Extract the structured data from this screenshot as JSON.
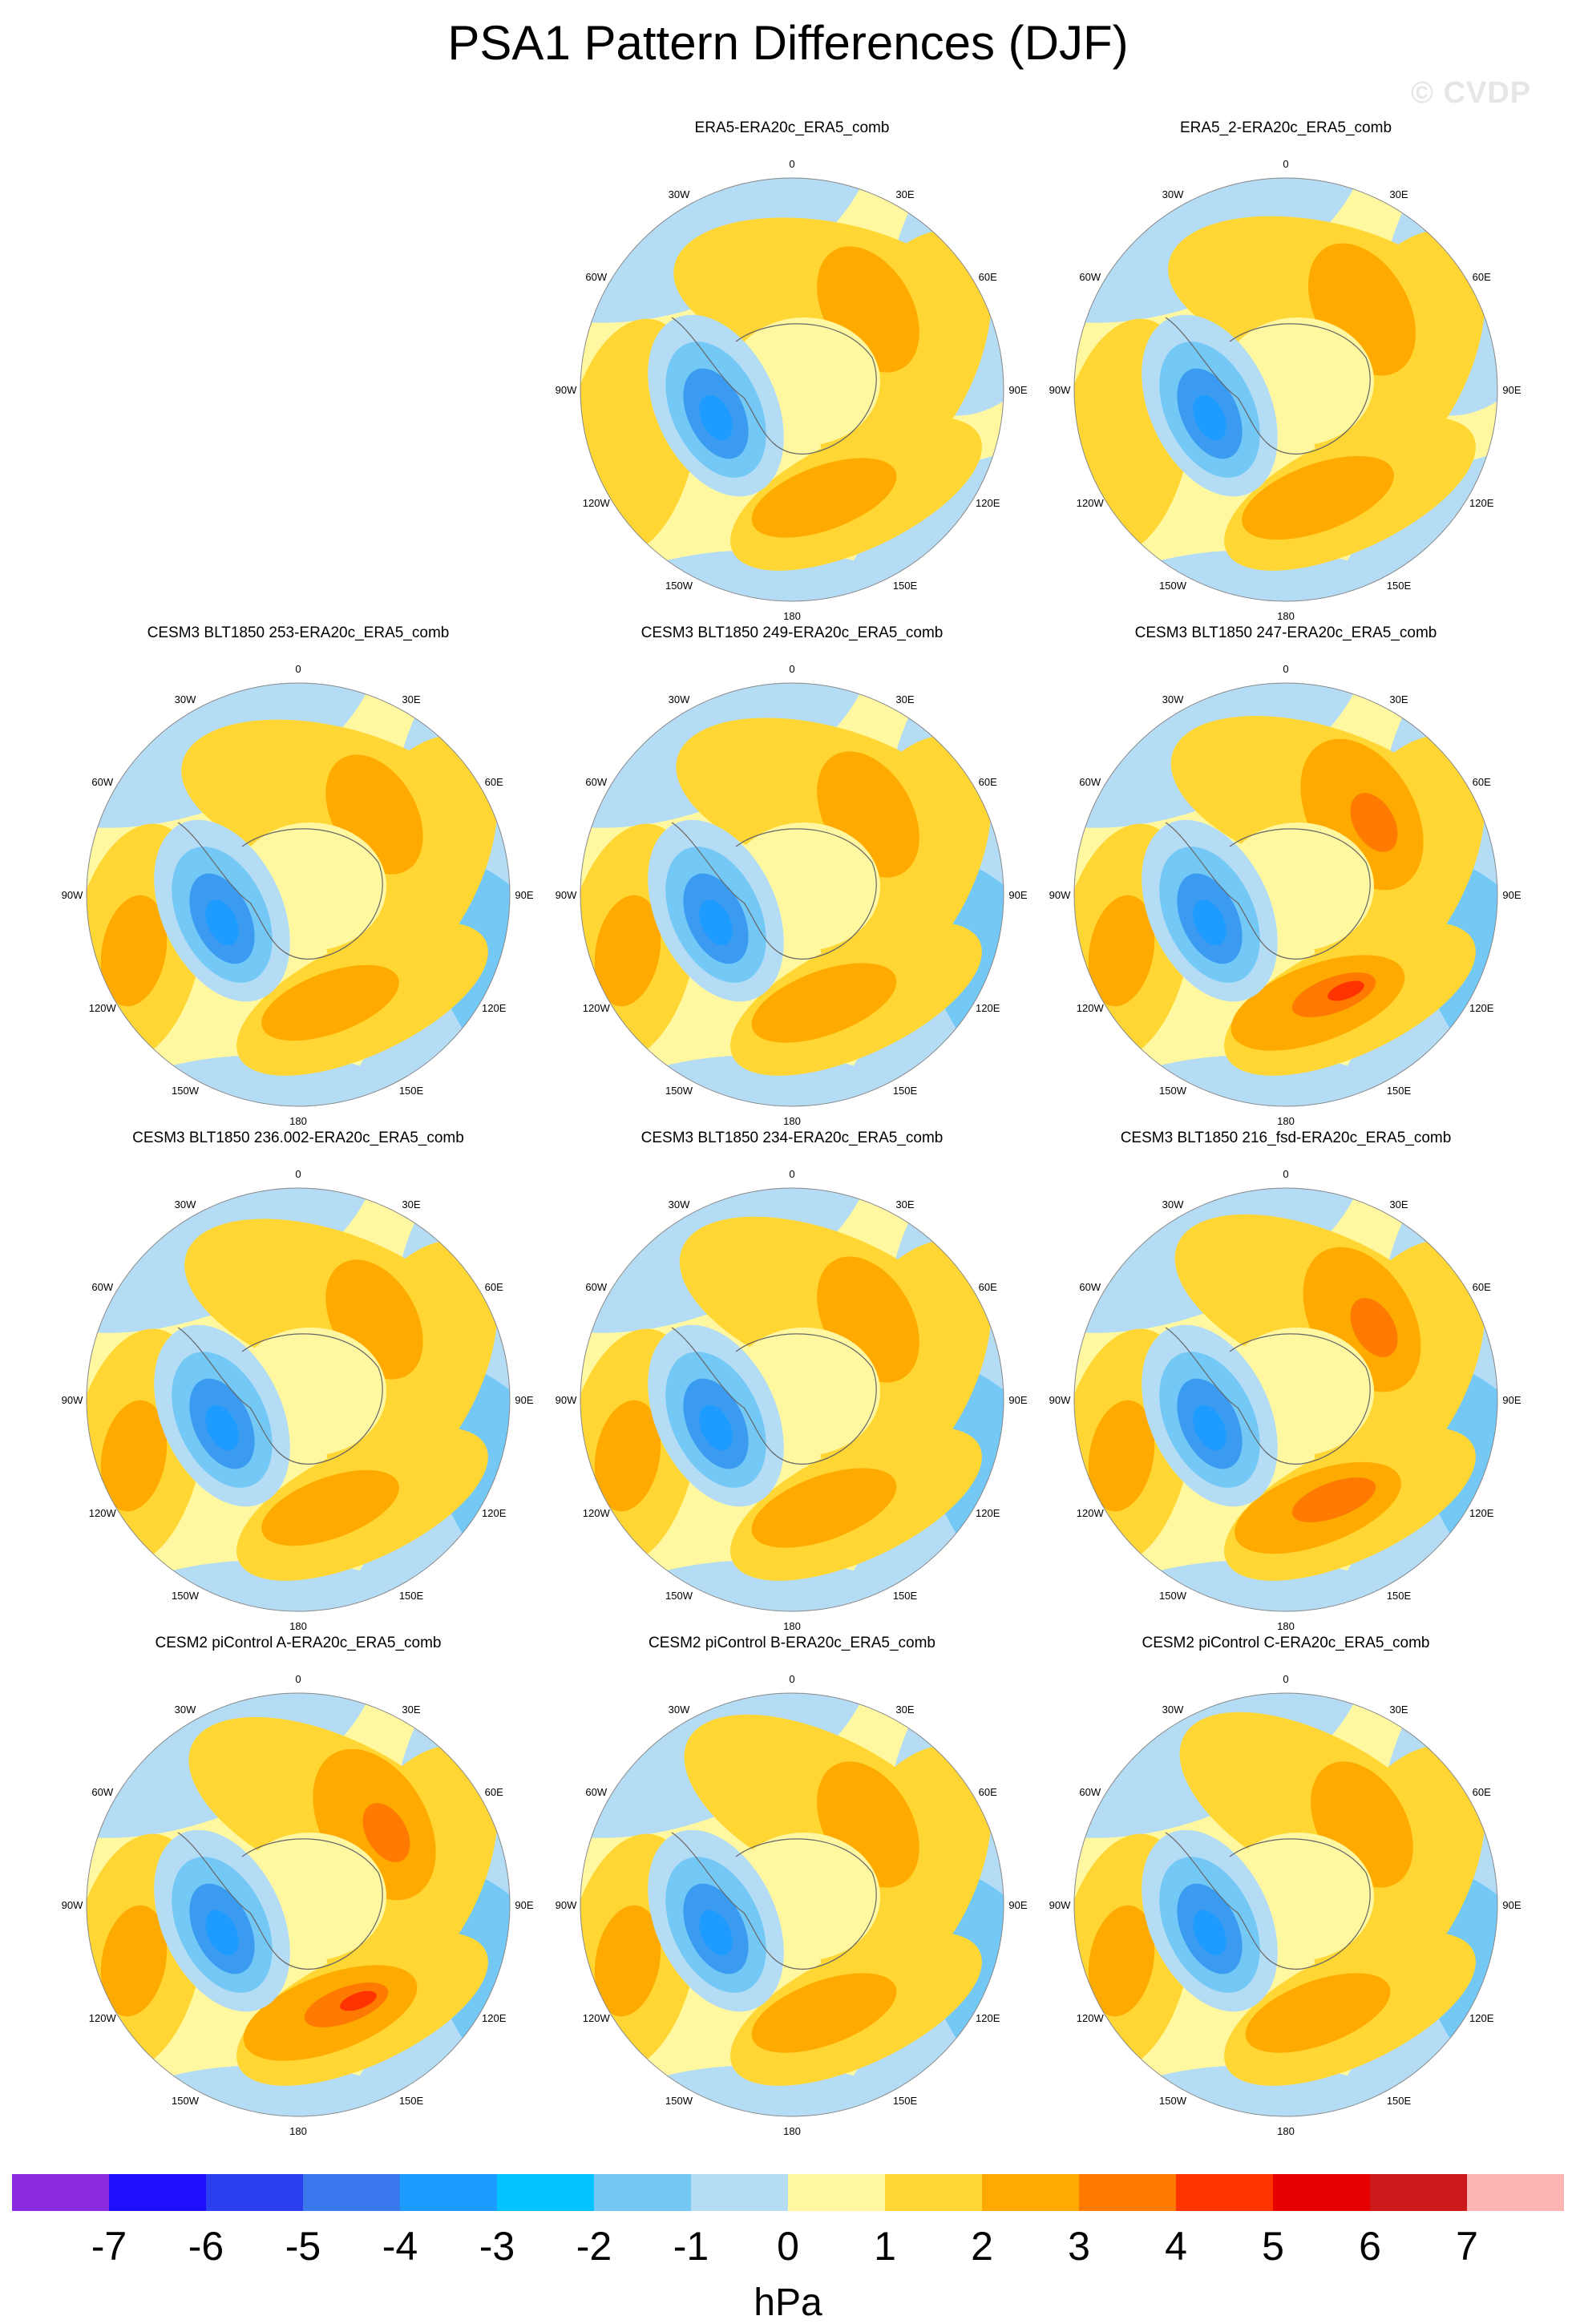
{
  "title": "PSA1 Pattern Differences (DJF)",
  "watermark": "© CVDP",
  "units": "hPa",
  "lon_labels": [
    "0",
    "30E",
    "60E",
    "90E",
    "120E",
    "150E",
    "180",
    "150W",
    "120W",
    "90W",
    "60W",
    "30W"
  ],
  "colorbar": {
    "labels": [
      "-7",
      "-6",
      "-5",
      "-4",
      "-3",
      "-2",
      "-1",
      "0",
      "1",
      "2",
      "3",
      "4",
      "5",
      "6",
      "7"
    ],
    "colors": [
      "#8a2be2",
      "#1e10ff",
      "#2a3ff0",
      "#3a78ee",
      "#1e9bff",
      "#00c3ff",
      "#73c8f5",
      "#b4dcf5",
      "#fff8a0",
      "#ffd633",
      "#ffaa00",
      "#ff7a00",
      "#ff3300",
      "#e60000",
      "#cc1a1a",
      "#ffb4b4"
    ]
  },
  "panels": [
    {
      "title": "ERA5-ERA20c_ERA5_comb",
      "col": 1,
      "row": 0,
      "intensity": 1.0
    },
    {
      "title": "ERA5_2-ERA20c_ERA5_comb",
      "col": 2,
      "row": 0,
      "intensity": 1.05
    },
    {
      "title": "CESM3 BLT1850 253-ERA20c_ERA5_comb",
      "col": 0,
      "row": 1,
      "intensity": 0.95
    },
    {
      "title": "CESM3 BLT1850 249-ERA20c_ERA5_comb",
      "col": 1,
      "row": 1,
      "intensity": 1.0
    },
    {
      "title": "CESM3 BLT1850 247-ERA20c_ERA5_comb",
      "col": 2,
      "row": 1,
      "intensity": 1.2
    },
    {
      "title": "CESM3 BLT1850 236.002-ERA20c_ERA5_comb",
      "col": 0,
      "row": 2,
      "intensity": 0.95
    },
    {
      "title": "CESM3 BLT1850 234-ERA20c_ERA5_comb",
      "col": 1,
      "row": 2,
      "intensity": 1.0
    },
    {
      "title": "CESM3 BLT1850 216_fsd-ERA20c_ERA5_comb",
      "col": 2,
      "row": 2,
      "intensity": 1.15
    },
    {
      "title": "CESM2 piControl A-ERA20c_ERA5_comb",
      "col": 0,
      "row": 3,
      "intensity": 1.2
    },
    {
      "title": "CESM2 piControl B-ERA20c_ERA5_comb",
      "col": 1,
      "row": 3,
      "intensity": 1.0
    },
    {
      "title": "CESM2 piControl C-ERA20c_ERA5_comb",
      "col": 2,
      "row": 3,
      "intensity": 1.0
    }
  ]
}
